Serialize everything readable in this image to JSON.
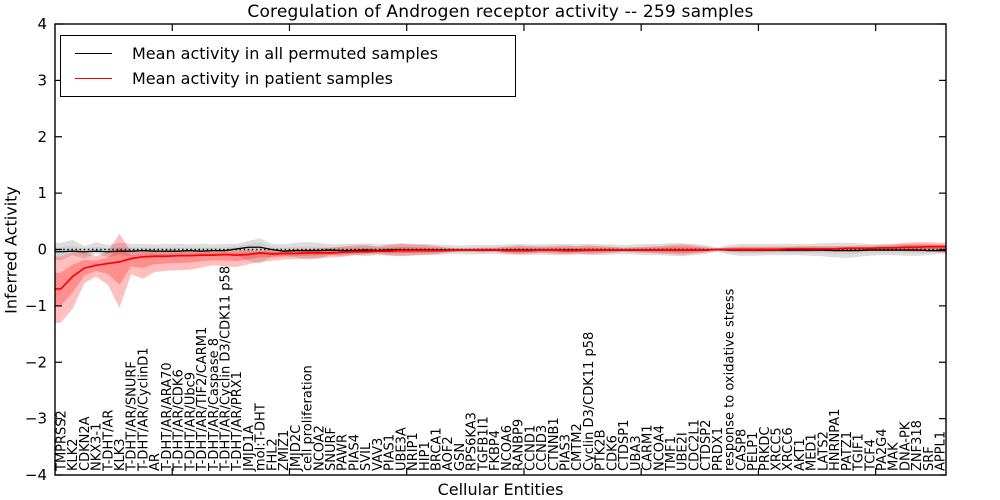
{
  "chart_data": {
    "type": "line",
    "title": "Coregulation of Androgen receptor activity -- 259 samples",
    "xlabel": "Cellular Entities",
    "ylabel": "Inferred Activity",
    "ylim": [
      -4,
      4
    ],
    "yticks": [
      -4,
      -3,
      -2,
      -1,
      0,
      1,
      2,
      3,
      4
    ],
    "grid": false,
    "legend_position": "upper left",
    "x_tick_label_rotation": 90,
    "zero_reference_line": {
      "y": 0,
      "style": "dotted",
      "color": "#000000"
    },
    "categories": [
      "TMPRSS2",
      "KLK2",
      "CDKN2A",
      "NKX3-1",
      "T-DHT/AR",
      "KLK3",
      "T-DHT/AR/SNURF",
      "T-DHT/AR/CyclinD1",
      "AR",
      "T-DHT/AR/ARA70",
      "T-DHT/AR/CDK6",
      "T-DHT/AR/Ubc9",
      "T-DHT/AR/TIF2/CARM1",
      "T-DHT/AR/Caspase 8",
      "T-DHT/AR/Cyclin D3/CDK11 p58",
      "T-DHT/AR/PRX1",
      "JMJD1A",
      "mol:T-DHT",
      "FHL2",
      "ZMIZ1",
      "JMJD2C",
      "cell proliferation",
      "NCOA2",
      "SNURF",
      "PAWR",
      "PIAS4",
      "SVIL",
      "VAV3",
      "PIAS1",
      "UBE3A",
      "NRIP1",
      "HIP1",
      "BRCA1",
      "AOF2",
      "GSN",
      "RPS6KA3",
      "TGFB1I1",
      "FKBP4",
      "NCOA6",
      "RANBP9",
      "CCND1",
      "CCND3",
      "CTNNB1",
      "PIAS3",
      "CMTM2",
      "Cyclin D3/CDK11 p58",
      "PTK2B",
      "CDK6",
      "CTDSP1",
      "UBA3",
      "CARM1",
      "NCOA4",
      "TMF1",
      "UBE2I",
      "CDC2L1",
      "CTDSP2",
      "PRDX1",
      "response to oxidative stress",
      "CASP8",
      "PELP1",
      "PRKDC",
      "XRCC5",
      "XRCC6",
      "AKT1",
      "MED1",
      "LATS2",
      "HNRNPA1",
      "PATZ1",
      "TGIF1",
      "TCF4",
      "PA2G4",
      "MAK",
      "DNA-PK",
      "ZNF318",
      "SRF",
      "APPL1"
    ],
    "series": [
      {
        "name": "Mean activity in all permuted samples",
        "color": "#000000",
        "band_color": "#808080",
        "values": [
          -0.04,
          -0.03,
          -0.04,
          -0.03,
          -0.04,
          -0.03,
          -0.03,
          -0.02,
          -0.03,
          -0.03,
          -0.03,
          -0.02,
          -0.03,
          -0.02,
          -0.02,
          0.01,
          0.04,
          0.04,
          0.0,
          -0.03,
          -0.02,
          -0.02,
          -0.02,
          -0.01,
          -0.02,
          -0.02,
          -0.01,
          -0.02,
          -0.01,
          -0.01,
          -0.01,
          -0.01,
          -0.01,
          -0.01,
          -0.01,
          -0.01,
          -0.01,
          -0.01,
          -0.01,
          -0.01,
          -0.01,
          -0.01,
          -0.01,
          -0.01,
          -0.01,
          -0.01,
          -0.01,
          -0.01,
          -0.01,
          -0.01,
          -0.01,
          -0.01,
          -0.01,
          -0.01,
          -0.01,
          -0.01,
          0.0,
          -0.01,
          -0.01,
          -0.01,
          -0.01,
          -0.01,
          -0.01,
          -0.01,
          -0.01,
          -0.01,
          -0.02,
          -0.02,
          -0.02,
          -0.01,
          -0.01,
          -0.01,
          -0.01,
          -0.01,
          -0.02,
          -0.02
        ],
        "band_lo": [
          -0.19,
          -0.1,
          -0.16,
          -0.07,
          -0.14,
          -0.1,
          -0.12,
          -0.1,
          -0.12,
          -0.1,
          -0.11,
          -0.1,
          -0.11,
          -0.1,
          -0.1,
          -0.11,
          -0.2,
          -0.25,
          -0.12,
          -0.11,
          -0.14,
          -0.18,
          -0.17,
          -0.1,
          -0.11,
          -0.1,
          -0.12,
          -0.1,
          -0.11,
          -0.12,
          -0.11,
          -0.1,
          -0.1,
          -0.08,
          -0.08,
          -0.09,
          -0.08,
          -0.08,
          -0.09,
          -0.1,
          -0.1,
          -0.09,
          -0.1,
          -0.1,
          -0.09,
          -0.1,
          -0.1,
          -0.09,
          -0.08,
          -0.09,
          -0.1,
          -0.1,
          -0.11,
          -0.12,
          -0.1,
          -0.08,
          -0.04,
          -0.09,
          -0.11,
          -0.11,
          -0.1,
          -0.1,
          -0.1,
          -0.1,
          -0.11,
          -0.12,
          -0.14,
          -0.15,
          -0.13,
          -0.11,
          -0.1,
          -0.1,
          -0.11,
          -0.11,
          -0.1,
          -0.08
        ],
        "band_hi": [
          0.12,
          0.17,
          0.06,
          0.13,
          0.08,
          0.12,
          0.1,
          0.1,
          0.09,
          0.1,
          0.1,
          0.09,
          0.1,
          0.09,
          0.1,
          0.1,
          0.15,
          0.2,
          0.1,
          0.09,
          0.12,
          0.13,
          0.12,
          0.09,
          0.1,
          0.1,
          0.11,
          0.09,
          0.1,
          0.11,
          0.1,
          0.1,
          0.09,
          0.08,
          0.07,
          0.08,
          0.08,
          0.08,
          0.09,
          0.1,
          0.09,
          0.09,
          0.1,
          0.1,
          0.09,
          0.1,
          0.09,
          0.09,
          0.08,
          0.09,
          0.1,
          0.1,
          0.11,
          0.11,
          0.1,
          0.08,
          0.03,
          0.08,
          0.1,
          0.1,
          0.1,
          0.1,
          0.1,
          0.1,
          0.1,
          0.11,
          0.12,
          0.12,
          0.11,
          0.1,
          0.1,
          0.1,
          0.1,
          0.1,
          0.09,
          0.08
        ]
      },
      {
        "name": "Mean activity in patient samples",
        "color": "#ff0000",
        "band_color": "#ff0000",
        "values": [
          -0.7,
          -0.48,
          -0.33,
          -0.28,
          -0.25,
          -0.22,
          -0.16,
          -0.13,
          -0.12,
          -0.12,
          -0.11,
          -0.11,
          -0.1,
          -0.1,
          -0.09,
          -0.1,
          -0.09,
          -0.06,
          -0.08,
          -0.07,
          -0.07,
          -0.06,
          -0.06,
          -0.06,
          -0.05,
          -0.04,
          -0.04,
          -0.03,
          -0.03,
          -0.02,
          -0.02,
          -0.02,
          -0.02,
          -0.02,
          -0.01,
          -0.01,
          -0.01,
          -0.01,
          -0.02,
          -0.02,
          -0.02,
          -0.01,
          -0.01,
          -0.02,
          -0.02,
          -0.01,
          -0.01,
          -0.01,
          -0.01,
          -0.01,
          -0.01,
          -0.01,
          -0.01,
          -0.01,
          -0.01,
          -0.01,
          0.0,
          0.0,
          0.0,
          0.0,
          0.0,
          0.0,
          0.01,
          0.01,
          0.01,
          0.01,
          0.01,
          0.02,
          0.02,
          0.02,
          0.03,
          0.03,
          0.04,
          0.04,
          0.05,
          0.05
        ],
        "band_lo": [
          -1.3,
          -1.05,
          -0.6,
          -0.48,
          -0.62,
          -1.03,
          -0.44,
          -0.52,
          -0.4,
          -0.38,
          -0.37,
          -0.36,
          -0.32,
          -0.28,
          -0.3,
          -0.31,
          -0.26,
          -0.22,
          -0.2,
          -0.18,
          -0.17,
          -0.16,
          -0.15,
          -0.14,
          -0.13,
          -0.1,
          -0.09,
          -0.08,
          -0.1,
          -0.11,
          -0.1,
          -0.09,
          -0.08,
          -0.05,
          -0.04,
          -0.04,
          -0.05,
          -0.04,
          -0.07,
          -0.08,
          -0.07,
          -0.06,
          -0.07,
          -0.08,
          -0.07,
          -0.08,
          -0.07,
          -0.06,
          -0.04,
          -0.05,
          -0.06,
          -0.07,
          -0.08,
          -0.09,
          -0.07,
          -0.05,
          -0.02,
          -0.04,
          -0.05,
          -0.05,
          -0.05,
          -0.04,
          -0.04,
          -0.04,
          -0.04,
          -0.03,
          -0.03,
          -0.03,
          -0.02,
          -0.02,
          -0.02,
          -0.02,
          -0.03,
          -0.04,
          -0.03,
          -0.05
        ],
        "band_hi": [
          -0.12,
          -0.05,
          -0.04,
          -0.12,
          -0.04,
          0.28,
          -0.04,
          -0.01,
          -0.02,
          -0.03,
          -0.02,
          -0.02,
          -0.02,
          -0.02,
          -0.01,
          -0.02,
          -0.01,
          -0.02,
          -0.01,
          -0.01,
          0.0,
          0.01,
          0.02,
          0.03,
          0.05,
          0.07,
          0.08,
          0.05,
          0.08,
          0.1,
          0.09,
          0.08,
          0.06,
          0.03,
          0.02,
          0.02,
          0.03,
          0.03,
          0.05,
          0.07,
          0.06,
          0.05,
          0.06,
          0.07,
          0.06,
          0.07,
          0.06,
          0.05,
          0.03,
          0.04,
          0.05,
          0.06,
          0.08,
          0.09,
          0.07,
          0.04,
          0.02,
          0.04,
          0.05,
          0.05,
          0.05,
          0.05,
          0.05,
          0.06,
          0.06,
          0.06,
          0.06,
          0.06,
          0.07,
          0.07,
          0.08,
          0.09,
          0.12,
          0.13,
          0.13,
          0.12
        ]
      }
    ]
  }
}
